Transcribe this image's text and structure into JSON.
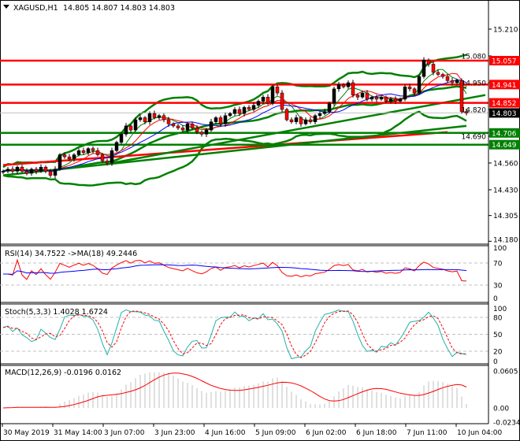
{
  "header": {
    "symbol": "XAGUSD,H1",
    "ohlc": "14.805 14.807 14.803 14.803",
    "menu_icon": "triangle-down-icon"
  },
  "colors": {
    "bull": "#000000",
    "bear": "#ff0000",
    "bands": "#008000",
    "resistance": "#ff0000",
    "support": "#008000",
    "current": "#000000",
    "rsi": "#ff0000",
    "rsi_ma": "#0000ff",
    "stoch_main": "#20b2aa",
    "stoch_signal": "#ff0000",
    "macd_hist": "#c0c0c0",
    "macd_signal": "#ff0000"
  },
  "chart_data": [
    {
      "type": "candlestick",
      "title": "XAGUSD,H1",
      "ylim": [
        14.18,
        15.25
      ],
      "y_ticks": [
        "15.210",
        "15.080",
        "14.950",
        "14.820",
        "14.690",
        "14.560",
        "14.430",
        "14.305",
        "14.180"
      ],
      "x_ticks": [
        "30 May 2019",
        "31 May 14:00",
        "3 Jun 07:00",
        "3 Jun 23:00",
        "4 Jun 16:00",
        "5 Jun 09:00",
        "6 Jun 02:00",
        "6 Jun 18:00",
        "7 Jun 11:00",
        "10 Jun 04:00"
      ],
      "close": [
        14.52,
        14.53,
        14.52,
        14.54,
        14.52,
        14.51,
        14.53,
        14.52,
        14.54,
        14.52,
        14.5,
        14.53,
        14.6,
        14.59,
        14.58,
        14.6,
        14.62,
        14.61,
        14.63,
        14.62,
        14.6,
        14.57,
        14.56,
        14.62,
        14.66,
        14.7,
        14.74,
        14.72,
        14.77,
        14.78,
        14.76,
        14.8,
        14.78,
        14.79,
        14.77,
        14.75,
        14.74,
        14.73,
        14.72,
        14.75,
        14.73,
        14.71,
        14.7,
        14.72,
        14.76,
        14.78,
        14.75,
        14.79,
        14.8,
        14.82,
        14.8,
        14.83,
        14.82,
        14.84,
        14.86,
        14.88,
        14.85,
        14.93,
        14.9,
        14.82,
        14.77,
        14.76,
        14.78,
        14.75,
        14.77,
        14.76,
        14.79,
        14.8,
        14.81,
        14.85,
        14.92,
        14.94,
        14.93,
        14.95,
        14.89,
        14.88,
        14.9,
        14.87,
        14.88,
        14.87,
        14.88,
        14.86,
        14.87,
        14.86,
        14.87,
        14.93,
        14.92,
        14.9,
        14.98,
        15.06,
        15.04,
        15.0,
        14.99,
        14.98,
        14.96,
        14.95,
        14.96,
        14.81,
        14.803
      ],
      "levels": [
        {
          "price": "15.057",
          "kind": "resistance"
        },
        {
          "price": "14.941",
          "kind": "resistance"
        },
        {
          "price": "14.852",
          "kind": "resistance"
        },
        {
          "price": "14.803",
          "kind": "current"
        },
        {
          "price": "14.706",
          "kind": "support"
        },
        {
          "price": "14.649",
          "kind": "support"
        }
      ],
      "trendlines": [
        {
          "color": "#ff0000",
          "from": [
            0,
            14.55
          ],
          "to": [
            94,
            14.71
          ]
        },
        {
          "color": "#008000",
          "from": [
            23,
            14.56
          ],
          "to": [
            102,
            14.89
          ]
        },
        {
          "color": "#008000",
          "from": [
            0,
            14.5
          ],
          "to": [
            98,
            14.74
          ]
        }
      ]
    },
    {
      "type": "line",
      "title": "RSI(14) 34.7522  ->MA(18) 49.2446",
      "ylim": [
        0,
        100
      ],
      "y_ticks": [
        "100",
        "70",
        "30",
        "0"
      ],
      "grid": [
        70,
        30
      ]
    },
    {
      "type": "line",
      "title": "Stoch(5,3,3) 1.4028 1.6724",
      "ylim": [
        0,
        100
      ],
      "y_ticks": [
        "100",
        "80",
        "50",
        "20",
        "0"
      ],
      "grid": [
        80,
        50,
        20
      ]
    },
    {
      "type": "bar",
      "title": "MACD(12,26,9) -0.0196 0.0162",
      "ylim": [
        -0.0234,
        0.0605
      ],
      "y_ticks": [
        "0.0605",
        "0.00",
        "-0.0234"
      ]
    }
  ]
}
